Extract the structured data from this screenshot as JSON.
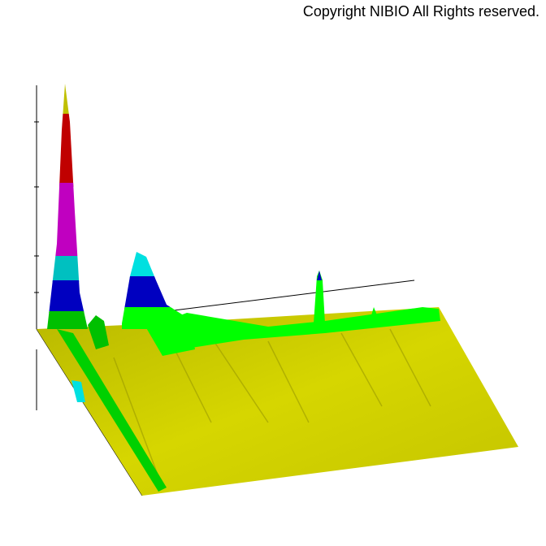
{
  "copyright": "Copyright NIBIO All Rights reserved."
}
